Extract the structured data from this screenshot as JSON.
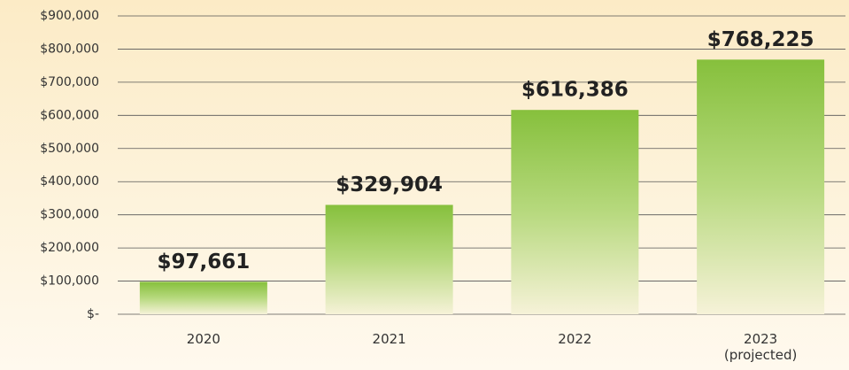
{
  "chart_data": {
    "type": "bar",
    "categories": [
      "2020",
      "2021",
      "2022",
      "2023 (projected)"
    ],
    "values": [
      97661,
      329904,
      616386,
      768225
    ],
    "value_labels": [
      "$97,661",
      "$329,904",
      "$616,386",
      "$768,225"
    ],
    "color": "#86c03c",
    "ylim": [
      0,
      900000
    ],
    "yticks": [
      {
        "value": 0,
        "label": "$-"
      },
      {
        "value": 100000,
        "label": "$100,000"
      },
      {
        "value": 200000,
        "label": "$200,000"
      },
      {
        "value": 300000,
        "label": "$300,000"
      },
      {
        "value": 400000,
        "label": "$400,000"
      },
      {
        "value": 500000,
        "label": "$500,000"
      },
      {
        "value": 600000,
        "label": "$600,000"
      },
      {
        "value": 700000,
        "label": "$700,000"
      },
      {
        "value": 800000,
        "label": "$800,000"
      },
      {
        "value": 900000,
        "label": "$900,000"
      }
    ],
    "grid": true
  }
}
